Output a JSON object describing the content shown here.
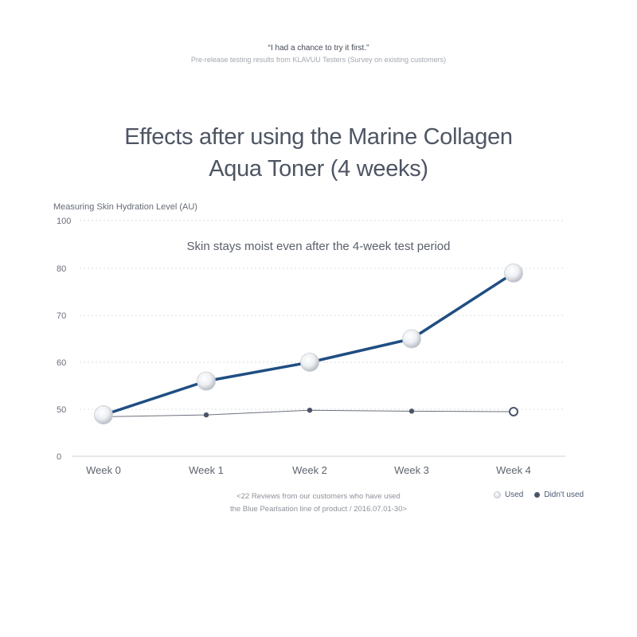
{
  "header": {
    "quote": "“I had a chance to try it first.”",
    "subtitle": "Pre-release testing results from KLAVUU Testers (Survey on existing customers)"
  },
  "chart_data": {
    "type": "line",
    "title": [
      "Effects after using the Marine Collagen",
      "Aqua Toner (4 weeks)"
    ],
    "ylabel": "Measuring Skin Hydration Level (AU)",
    "annotation": "Skin stays moist even after the 4-week test period",
    "categories": [
      "Week 0",
      "Week 1",
      "Week 2",
      "Week 3",
      "Week 4"
    ],
    "y_ticks": [
      "0",
      "50",
      "60",
      "70",
      "80",
      "100"
    ],
    "grid": true,
    "series": [
      {
        "name": "Used",
        "color": "#1f4e82",
        "values": [
          44,
          56,
          60,
          65,
          79
        ],
        "marker": "pearl"
      },
      {
        "name": "Didn't used",
        "color": "#6b717c",
        "values": [
          42,
          44,
          49,
          48,
          47.5
        ],
        "marker": "dot-open-last"
      }
    ],
    "legend_position": "bottom-right"
  },
  "footnote": {
    "line1": "<22 Reviews from our customers who have used",
    "line2": "the Blue Pearlsation line of product / 2016.07.01-30>"
  },
  "legend": {
    "used_label": "Used",
    "not_used_label": "Didn't used"
  }
}
